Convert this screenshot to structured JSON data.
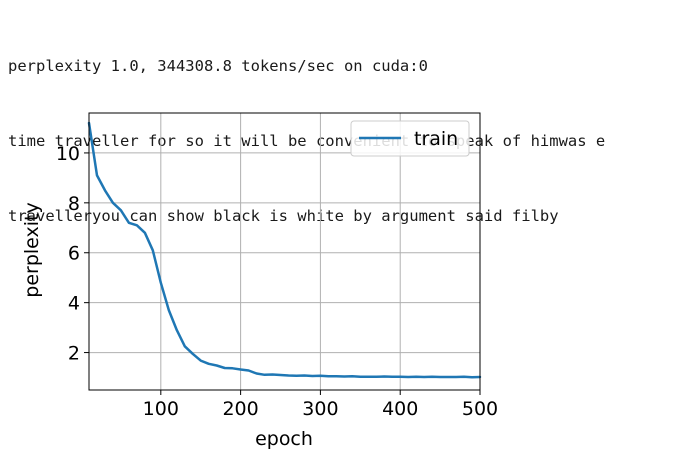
{
  "output": {
    "lines": [
      "perplexity 1.0, 344308.8 tokens/sec on cuda:0",
      "time traveller for so it will be convenient to speak of himwas e",
      "travelleryou can show black is white by argument said filby"
    ]
  },
  "colors": {
    "series": "#1f77b4",
    "grid": "#b0b0b0",
    "axis": "#000000",
    "text": "#000000"
  },
  "chart_data": {
    "type": "line",
    "xlabel": "epoch",
    "ylabel": "perplexity",
    "xlim": [
      10,
      500
    ],
    "ylim": [
      0.5,
      11.6
    ],
    "xticks": [
      100,
      200,
      300,
      400,
      500
    ],
    "yticks": [
      2,
      4,
      6,
      8,
      10
    ],
    "grid": true,
    "legend": "top-right",
    "series": [
      {
        "name": "train",
        "x": [
          10,
          20,
          30,
          40,
          50,
          60,
          70,
          80,
          90,
          100,
          110,
          120,
          130,
          140,
          150,
          160,
          170,
          180,
          190,
          200,
          210,
          220,
          230,
          240,
          250,
          260,
          270,
          280,
          290,
          300,
          310,
          320,
          330,
          340,
          350,
          360,
          370,
          380,
          390,
          400,
          410,
          420,
          430,
          440,
          450,
          460,
          470,
          480,
          490,
          500
        ],
        "values": [
          11.2,
          9.1,
          8.5,
          8.0,
          7.7,
          7.2,
          7.1,
          6.8,
          6.1,
          4.8,
          3.7,
          2.9,
          2.25,
          1.95,
          1.68,
          1.55,
          1.48,
          1.38,
          1.37,
          1.32,
          1.28,
          1.16,
          1.11,
          1.12,
          1.1,
          1.08,
          1.07,
          1.08,
          1.06,
          1.07,
          1.05,
          1.05,
          1.04,
          1.05,
          1.03,
          1.03,
          1.03,
          1.04,
          1.03,
          1.03,
          1.02,
          1.03,
          1.02,
          1.03,
          1.02,
          1.02,
          1.02,
          1.03,
          1.01,
          1.02
        ]
      }
    ]
  }
}
